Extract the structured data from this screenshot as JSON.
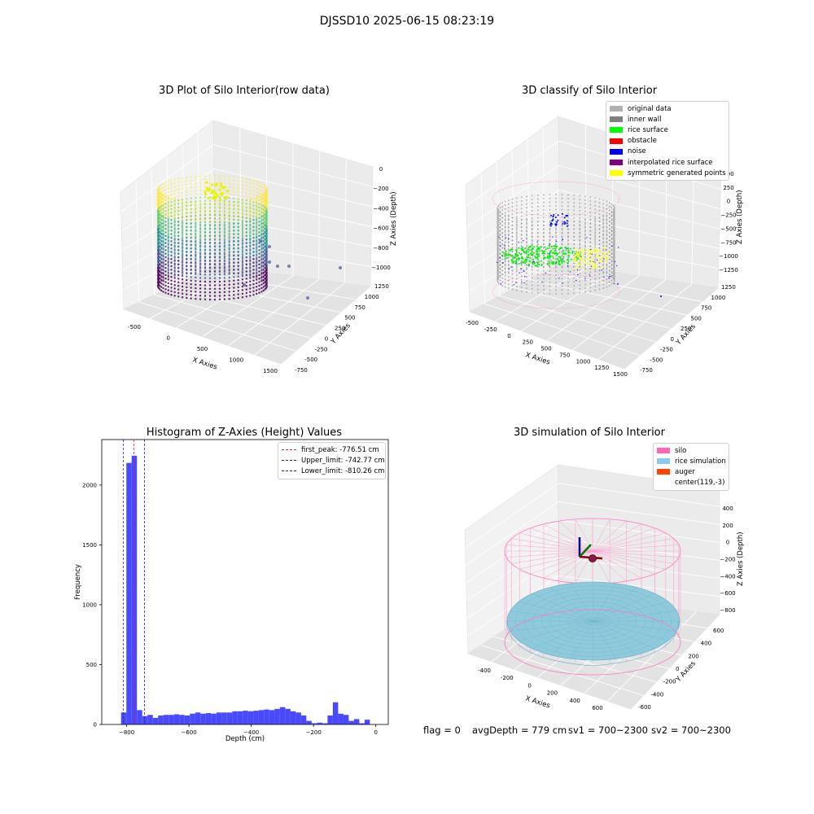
{
  "figure": {
    "suptitle": "DJSSD10 2025-06-15 08:23:19",
    "status_line": {
      "flag": "flag = 0",
      "avg_depth": "avgDepth = 779 cm",
      "sv1": "sv1 = 700~2300",
      "sv2": "sv2 = 700~2300"
    }
  },
  "chart_data": [
    {
      "type": "scatter",
      "projection": "3d",
      "title": "3D Plot of Silo Interior(row data)",
      "xlabel": "X Axies",
      "ylabel": "Y Axies",
      "zlabel": "Z Axies (Depth)",
      "x_ticks": [
        "-500",
        "0",
        "500",
        "1000",
        "1500"
      ],
      "y_ticks": [
        "-750",
        "-500",
        "-250",
        "0",
        "250",
        "500",
        "750",
        "1000",
        "1250"
      ],
      "z_ticks": [
        "0",
        "−200",
        "−400",
        "−600",
        "−800",
        "−1000"
      ],
      "colormap": "viridis",
      "grid": true
    },
    {
      "type": "scatter",
      "projection": "3d",
      "title": "3D classify of Silo Interior",
      "xlabel": "X Axies",
      "ylabel": "Y Axies",
      "zlabel": "Z Axies (Depth)",
      "x_ticks": [
        "-500",
        "-250",
        "0",
        "250",
        "500",
        "750",
        "1000",
        "1250",
        "1500"
      ],
      "y_ticks": [
        "-750",
        "-500",
        "-250",
        "0",
        "250",
        "500",
        "750",
        "1000",
        "1250"
      ],
      "z_ticks": [
        "500",
        "250",
        "0",
        "−250",
        "−500",
        "−750",
        "−1000",
        "−1250"
      ],
      "legend": [
        {
          "label": "original data",
          "color": "#b0b0b0"
        },
        {
          "label": "inner wall",
          "color": "#808080"
        },
        {
          "label": "rice surface",
          "color": "#00ff00"
        },
        {
          "label": "obstacle",
          "color": "#ff0000"
        },
        {
          "label": "noise",
          "color": "#0000ff"
        },
        {
          "label": "interpolated rice surface",
          "color": "#800080"
        },
        {
          "label": "symmetric generated points",
          "color": "#ffff00"
        }
      ],
      "legend_position": "top-right",
      "grid": true
    },
    {
      "type": "bar",
      "title": "Histogram of Z-Axies (Height) Values",
      "xlabel": "Depth (cm)",
      "ylabel": "Frequency",
      "xlim": [
        -880,
        40
      ],
      "ylim": [
        0,
        2380
      ],
      "x_ticks": [
        -800,
        -600,
        -400,
        -200,
        0
      ],
      "y_ticks": [
        0,
        500,
        1000,
        1500,
        2000
      ],
      "bin_width": 17,
      "bin_start": -818,
      "values": [
        100,
        2185,
        2245,
        120,
        70,
        80,
        55,
        75,
        80,
        80,
        85,
        80,
        75,
        90,
        100,
        90,
        95,
        90,
        100,
        100,
        100,
        110,
        110,
        115,
        110,
        115,
        120,
        125,
        120,
        130,
        145,
        130,
        110,
        100,
        75,
        30,
        10,
        15,
        10,
        75,
        185,
        90,
        80,
        30,
        45,
        10,
        40
      ],
      "bar_color": "#4949ff",
      "vlines": [
        {
          "label": "first_peak: -776.51 cm",
          "x": -776.51,
          "color": "#d62728"
        },
        {
          "label": "Upper_limit: -742.77 cm",
          "x": -742.77,
          "color": "#1f1fa0"
        },
        {
          "label": "Lower_limit: -810.26 cm",
          "x": -810.26,
          "color": "#1f1fa0"
        }
      ],
      "legend_position": "top-right"
    },
    {
      "type": "scatter",
      "projection": "3d",
      "title": "3D simulation of Silo Interior",
      "xlabel": "X Axies",
      "ylabel": "Y Axies",
      "zlabel": "Z Axies (Depth)",
      "x_ticks": [
        "-400",
        "-200",
        "0",
        "200",
        "400",
        "600"
      ],
      "y_ticks": [
        "-600",
        "-400",
        "-200",
        "0",
        "200",
        "400",
        "600"
      ],
      "z_ticks": [
        "400",
        "200",
        "0",
        "−200",
        "−400",
        "−600",
        "−800"
      ],
      "legend": [
        {
          "label": "silo",
          "color": "#ff69b4"
        },
        {
          "label": "rice simulation",
          "color": "#87ceeb"
        },
        {
          "label": "auger",
          "color": "#ff4500"
        },
        {
          "label": "center(119,-3)",
          "color": "#ffffff"
        }
      ],
      "legend_position": "top-right",
      "grid": true
    }
  ]
}
